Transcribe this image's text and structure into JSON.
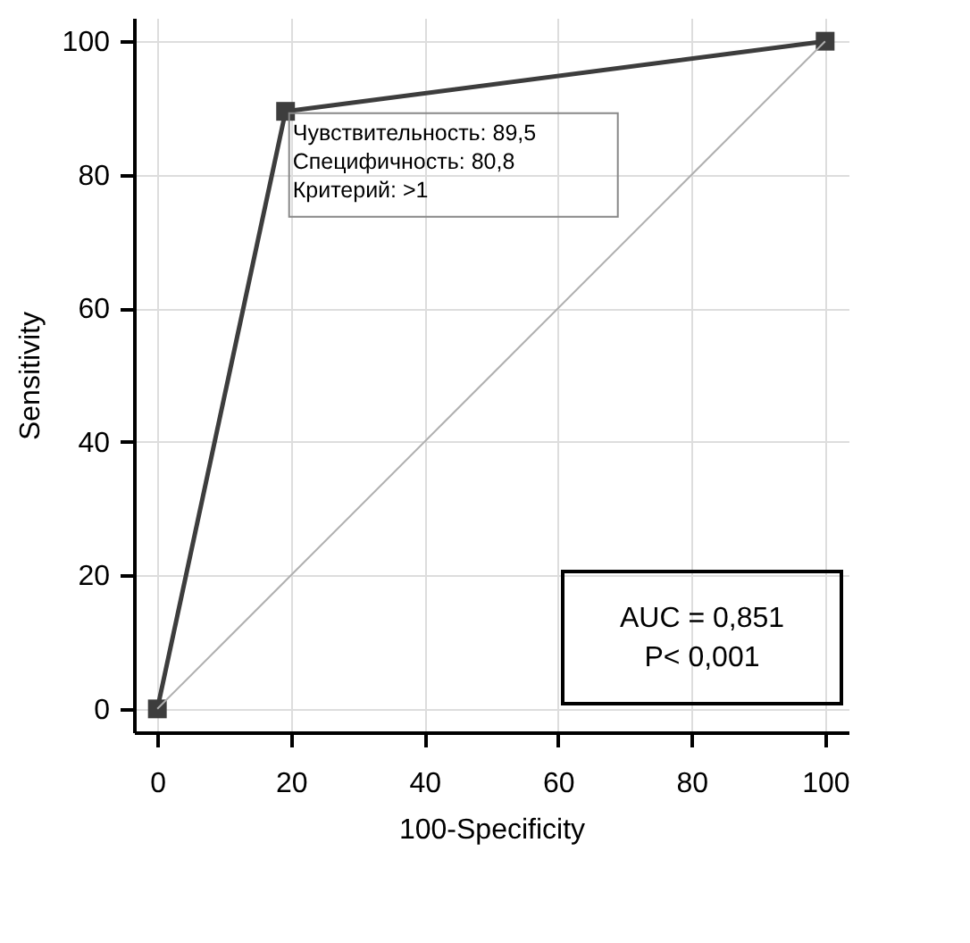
{
  "chart_data": {
    "type": "line",
    "xlabel": "100-Specificity",
    "ylabel": "Sensitivity",
    "xlim": [
      -3.5,
      103.5
    ],
    "ylim": [
      -3.5,
      103.5
    ],
    "xticks": [
      0,
      20,
      40,
      60,
      80,
      100
    ],
    "yticks": [
      0,
      20,
      40,
      60,
      80,
      100
    ],
    "grid": true,
    "series": [
      {
        "color": "#3d3d3d",
        "marker": "square",
        "x": [
          0,
          19.2,
          100
        ],
        "values": [
          0,
          89.5,
          100
        ]
      },
      {
        "color": "#b0b0b0",
        "marker": "none",
        "x": [
          0,
          100
        ],
        "values": [
          0,
          100
        ]
      }
    ],
    "annotations": [
      {
        "text": "Чувствительность: 89,5\nСпецифичность: 80,8\nКритерий: >1",
        "x": 19.2,
        "y": 89.5
      },
      "AUC = 0,851\nP< 0,001"
    ]
  }
}
